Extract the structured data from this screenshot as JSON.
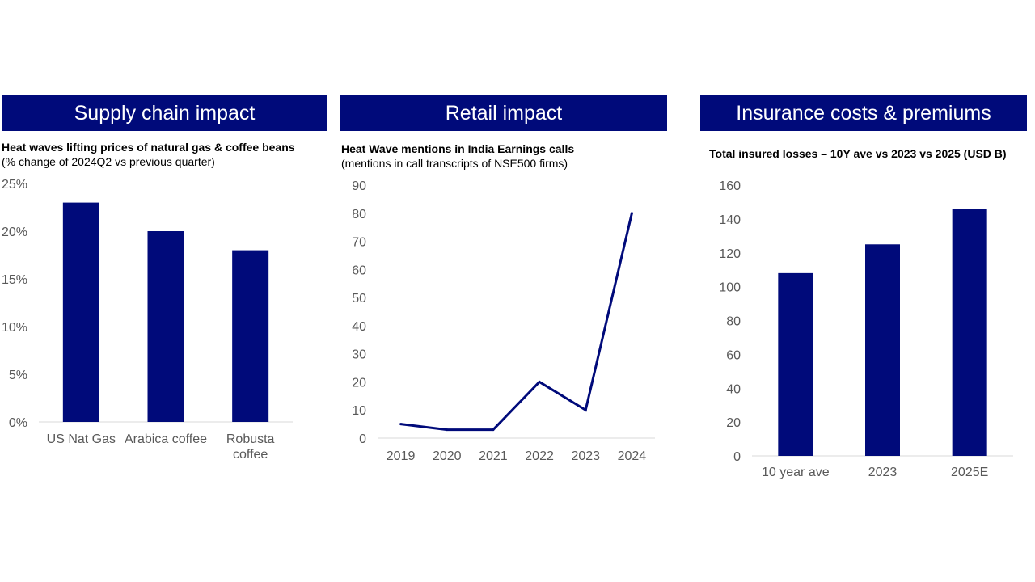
{
  "panels": [
    {
      "header": "Supply chain impact"
    },
    {
      "header": "Retail impact"
    },
    {
      "header": "Insurance costs & premiums"
    }
  ],
  "colors": {
    "navy": "#000a7a",
    "axis_text": "#595959",
    "axis_line": "#d9d9d9"
  },
  "chart_data": [
    {
      "type": "bar",
      "title": "Heat waves lifting prices of natural gas & coffee beans",
      "subtitle": "(% change of 2024Q2 vs previous quarter)",
      "categories": [
        [
          "US Nat Gas"
        ],
        [
          "Arabica coffee"
        ],
        [
          "Robusta",
          "coffee"
        ]
      ],
      "values": [
        23,
        20,
        18
      ],
      "ylim": [
        0,
        25
      ],
      "yticks": [
        0,
        5,
        10,
        15,
        20,
        25
      ],
      "ytick_labels": [
        "0%",
        "5%",
        "10%",
        "15%",
        "20%",
        "25%"
      ],
      "xlabel": "",
      "ylabel": ""
    },
    {
      "type": "line",
      "title": "Heat Wave mentions in India Earnings calls",
      "subtitle": "(mentions in call transcripts of NSE500 firms)",
      "x": [
        "2019",
        "2020",
        "2021",
        "2022",
        "2023",
        "2024"
      ],
      "values": [
        5,
        3,
        3,
        20,
        10,
        80
      ],
      "ylim": [
        0,
        90
      ],
      "yticks": [
        0,
        10,
        20,
        30,
        40,
        50,
        60,
        70,
        80,
        90
      ],
      "xlabel": "",
      "ylabel": ""
    },
    {
      "type": "bar",
      "title": "Total insured losses – 10Y ave vs 2023 vs 2025 (USD B)",
      "categories": [
        [
          "10 year ave"
        ],
        [
          "2023"
        ],
        [
          "2025E"
        ]
      ],
      "values": [
        108,
        125,
        146
      ],
      "ylim": [
        0,
        160
      ],
      "yticks": [
        0,
        20,
        40,
        60,
        80,
        100,
        120,
        140,
        160
      ],
      "xlabel": "",
      "ylabel": ""
    }
  ]
}
